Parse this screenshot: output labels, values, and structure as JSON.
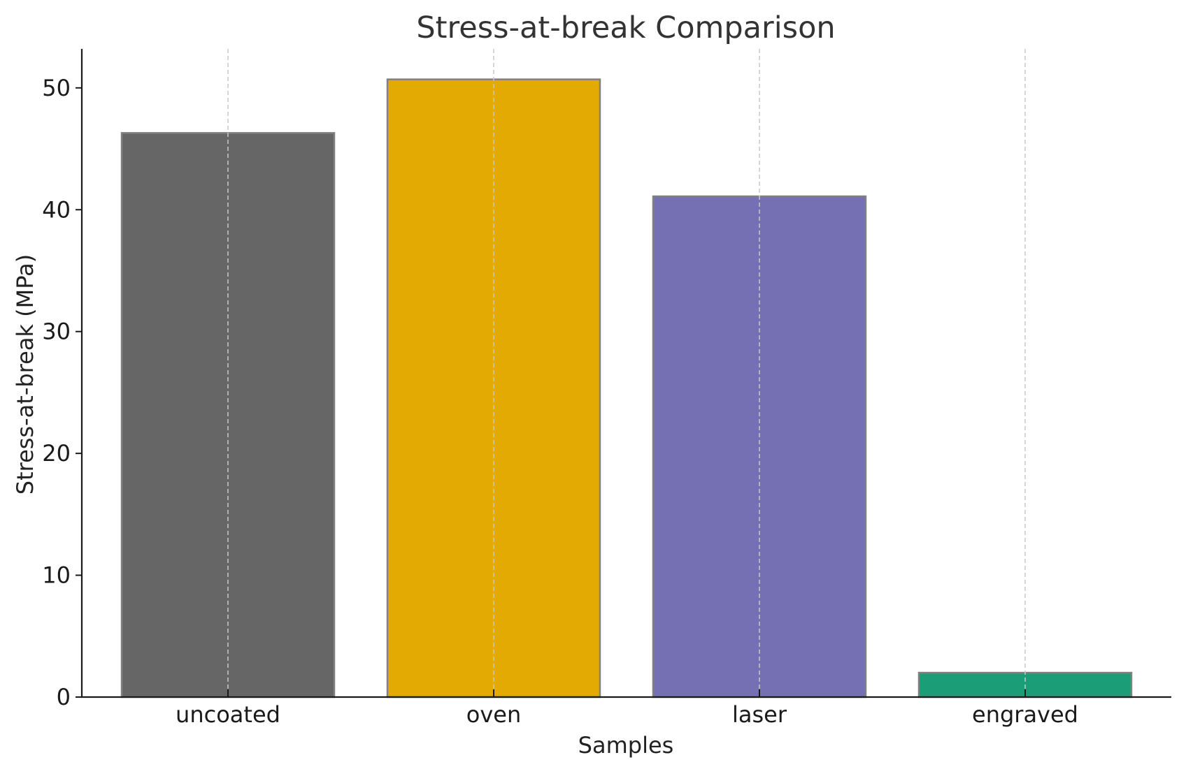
{
  "chart_data": {
    "type": "bar",
    "title": "Stress-at-break Comparison",
    "xlabel": "Samples",
    "ylabel": "Stress-at-break (MPa)",
    "categories": [
      "uncoated",
      "oven",
      "laser",
      "engraved"
    ],
    "values": [
      46.3,
      50.7,
      41.1,
      2.0
    ],
    "colors": [
      "#666666",
      "#e3aa03",
      "#7570b3",
      "#1b9e77"
    ],
    "bar_edge_color": "#808080",
    "ylim": [
      0,
      53.2
    ],
    "yticks": [
      0,
      10,
      20,
      30,
      40,
      50
    ],
    "grid": {
      "x": true,
      "y": false,
      "style": "dashed"
    },
    "legend": "none"
  }
}
